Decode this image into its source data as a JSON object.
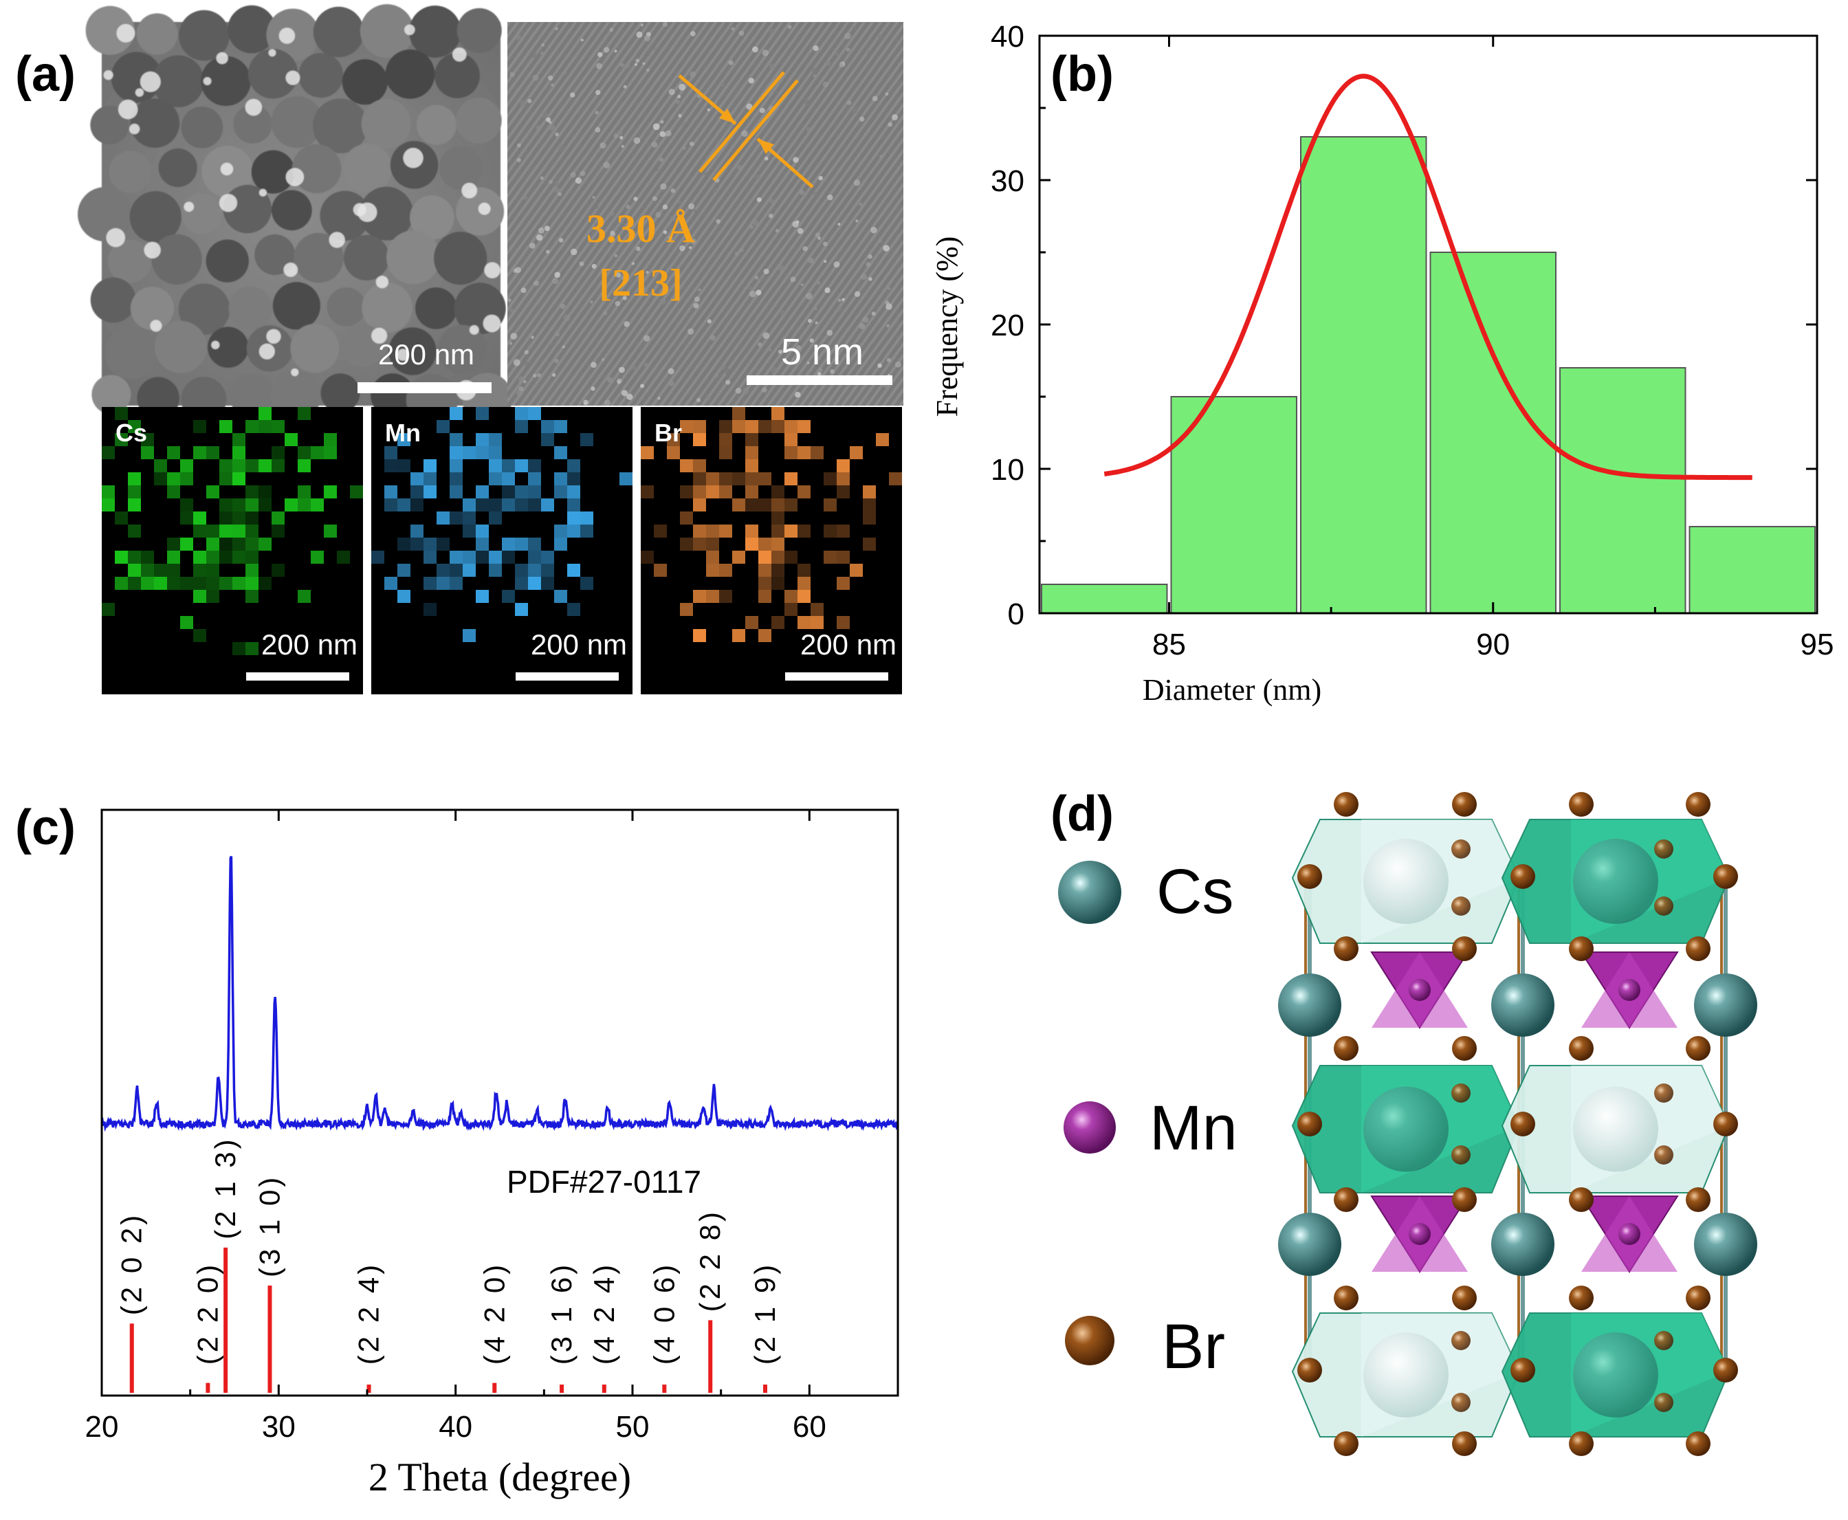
{
  "figure": {
    "panel_labels": {
      "a": "(a)",
      "b": "(b)",
      "c": "(c)",
      "d": "(d)"
    },
    "panel_a": {
      "tem_scale": "200 nm",
      "hrtem_scale": "5 nm",
      "d_spacing": "3.30 Å",
      "plane": "[213]",
      "maps": [
        {
          "element": "Cs",
          "scale": "200 nm",
          "color": "#19c419"
        },
        {
          "element": "Mn",
          "scale": "200 nm",
          "color": "#3aa6e8"
        },
        {
          "element": "Br",
          "scale": "200 nm",
          "color": "#f08c3c"
        }
      ],
      "annotation_color": "#f3a21a"
    },
    "panel_d": {
      "legend": [
        {
          "label": "Cs",
          "color": "#2f6f6f"
        },
        {
          "label": "Mn",
          "color": "#8e1f8e"
        },
        {
          "label": "Br",
          "color": "#8b4a14"
        }
      ]
    }
  },
  "chart_data": [
    {
      "id": "b",
      "type": "bar",
      "xlabel": "Diameter (nm)",
      "ylabel": "Frequency (%)",
      "xlim": [
        83,
        95
      ],
      "ylim": [
        0,
        40
      ],
      "xticks": [
        85,
        90,
        95
      ],
      "yticks": [
        0,
        10,
        20,
        30,
        40
      ],
      "bars": [
        {
          "x0": 83,
          "x1": 85,
          "value": 2
        },
        {
          "x0": 85,
          "x1": 87,
          "value": 15
        },
        {
          "x0": 87,
          "x1": 89,
          "value": 33
        },
        {
          "x0": 89,
          "x1": 91,
          "value": 25
        },
        {
          "x0": 91,
          "x1": 93,
          "value": 17
        },
        {
          "x0": 93,
          "x1": 95,
          "value": 6
        }
      ],
      "fit": {
        "type": "gaussian",
        "baseline": 9.4,
        "amplitude": 27.8,
        "center": 88,
        "sigma": 1.3,
        "x_range": [
          84,
          94
        ]
      },
      "bar_color": "#77ec77",
      "fit_color": "#e81d1d"
    },
    {
      "id": "c",
      "type": "line",
      "xlabel": "2 Theta (degree)",
      "xlim": [
        20,
        65
      ],
      "xticks": [
        20,
        30,
        40,
        50,
        60
      ],
      "reference": "PDF#27-0117",
      "pattern_color": "#1a1adc",
      "reference_color": "#e81d1d",
      "peaks": [
        {
          "x": 22.0,
          "h": 0.13
        },
        {
          "x": 23.1,
          "h": 0.08
        },
        {
          "x": 26.6,
          "h": 0.18
        },
        {
          "x": 27.3,
          "h": 1.0
        },
        {
          "x": 29.8,
          "h": 0.48
        },
        {
          "x": 35.0,
          "h": 0.07
        },
        {
          "x": 35.5,
          "h": 0.1
        },
        {
          "x": 36.0,
          "h": 0.06
        },
        {
          "x": 37.6,
          "h": 0.05
        },
        {
          "x": 39.8,
          "h": 0.07
        },
        {
          "x": 40.3,
          "h": 0.05
        },
        {
          "x": 42.3,
          "h": 0.12
        },
        {
          "x": 42.9,
          "h": 0.08
        },
        {
          "x": 44.6,
          "h": 0.05
        },
        {
          "x": 46.2,
          "h": 0.09
        },
        {
          "x": 48.6,
          "h": 0.06
        },
        {
          "x": 52.1,
          "h": 0.08
        },
        {
          "x": 54.0,
          "h": 0.07
        },
        {
          "x": 54.6,
          "h": 0.14
        },
        {
          "x": 57.8,
          "h": 0.06
        }
      ],
      "reference_lines": [
        {
          "x": 21.7,
          "h": 0.42,
          "hkl": "(2 0 2)"
        },
        {
          "x": 26.0,
          "h": 0.06,
          "hkl": "(2 2 0)"
        },
        {
          "x": 27.0,
          "h": 0.88,
          "hkl": "(2 1 3)"
        },
        {
          "x": 29.5,
          "h": 0.65,
          "hkl": "(3 1 0)"
        },
        {
          "x": 35.1,
          "h": 0.05,
          "hkl": "(2 2 4)"
        },
        {
          "x": 42.2,
          "h": 0.06,
          "hkl": "(4 2 0)"
        },
        {
          "x": 46.0,
          "h": 0.05,
          "hkl": "(3 1 6)"
        },
        {
          "x": 48.4,
          "h": 0.05,
          "hkl": "(4 2 4)"
        },
        {
          "x": 51.8,
          "h": 0.05,
          "hkl": "(4 0 6)"
        },
        {
          "x": 54.4,
          "h": 0.44,
          "hkl": "(2 2 8)"
        },
        {
          "x": 57.5,
          "h": 0.05,
          "hkl": "(2 1 9)"
        }
      ]
    }
  ]
}
